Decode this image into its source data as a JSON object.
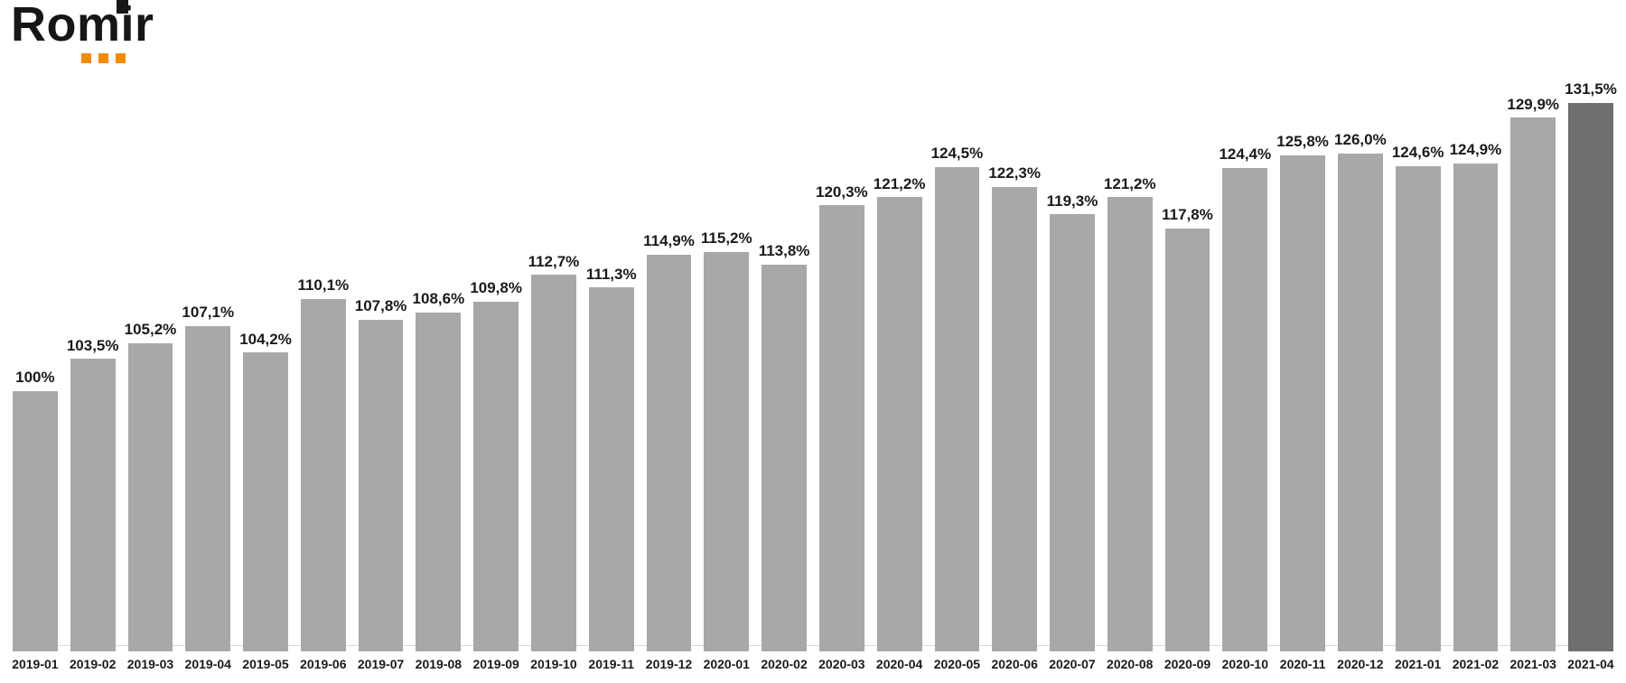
{
  "logo": {
    "text": "Romir",
    "accent_color": "#F28C00",
    "text_color": "#161616"
  },
  "chart_data": {
    "type": "bar",
    "title": "",
    "xlabel": "",
    "ylabel": "",
    "categories": [
      "2019-01",
      "2019-02",
      "2019-03",
      "2019-04",
      "2019-05",
      "2019-06",
      "2019-07",
      "2019-08",
      "2019-09",
      "2019-10",
      "2019-11",
      "2019-12",
      "2020-01",
      "2020-02",
      "2020-03",
      "2020-04",
      "2020-05",
      "2020-06",
      "2020-07",
      "2020-08",
      "2020-09",
      "2020-10",
      "2020-11",
      "2020-12",
      "2021-01",
      "2021-02",
      "2021-03",
      "2021-04"
    ],
    "values": [
      100,
      103.5,
      105.2,
      107.1,
      104.2,
      110.1,
      107.8,
      108.6,
      109.8,
      112.7,
      111.3,
      114.9,
      115.2,
      113.8,
      120.3,
      121.2,
      124.5,
      122.3,
      119.3,
      121.2,
      117.8,
      124.4,
      125.8,
      126.0,
      124.6,
      124.9,
      129.9,
      131.5
    ],
    "value_labels": [
      "100%",
      "103,5%",
      "105,2%",
      "107,1%",
      "104,2%",
      "110,1%",
      "107,8%",
      "108,6%",
      "109,8%",
      "112,7%",
      "111,3%",
      "114,9%",
      "115,2%",
      "113,8%",
      "120,3%",
      "121,2%",
      "124,5%",
      "122,3%",
      "119,3%",
      "121,2%",
      "117,8%",
      "124,4%",
      "125,8%",
      "126,0%",
      "124,6%",
      "124,9%",
      "129,9%",
      "131,5%"
    ],
    "bar_color": "#a8a8a8",
    "highlight_color": "#6f6f6f",
    "highlight_index": 27,
    "ylim": [
      71.5,
      131.5
    ],
    "grid": false,
    "legend": "none"
  }
}
